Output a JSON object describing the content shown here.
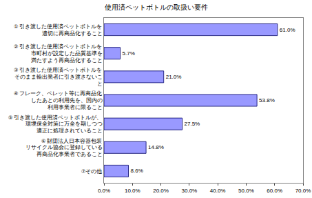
{
  "chart_data": {
    "type": "bar",
    "orientation": "horizontal",
    "title": "使用済ペットボトルの取扱い要件",
    "categories": [
      "① 引き渡した使用済ペットボトルを\n適切に再商品化すること",
      "② 引き渡した使用済ペットボトルを\n市町村が設定した品質基準を\n満たすよう再商品化すること",
      "③ 引き渡した使用済ペットボトルを\nそのまま輸出業者に引き渡さないこ\nと",
      "④ フレーク、ペレット等に再商品化\nしたあとの利用先を、国内の\n利用事業者に限ること",
      "⑤ 引き渡した使用済ペットボトルが、\n環境保全対策に万全を期しつつ\n適正に処理されていること",
      "⑥ 財団法人日本容器包装\nリサイクル協会に登録している\n再商品化事業者であること",
      "⑦その他"
    ],
    "values": [
      61.0,
      5.7,
      21.0,
      53.8,
      27.5,
      14.8,
      8.6
    ],
    "value_labels": [
      "61.0%",
      "5.7%",
      "21.0%",
      "53.8%",
      "27.5%",
      "14.8%",
      "8.6%"
    ],
    "data_labels": true,
    "color": "#9999ff",
    "xlim": [
      0,
      70
    ],
    "xticks": [
      {
        "value": 0,
        "label": "0.0%"
      },
      {
        "value": 10,
        "label": "10.0%"
      },
      {
        "value": 20,
        "label": "20.0%"
      },
      {
        "value": 30,
        "label": "30.0%"
      },
      {
        "value": 40,
        "label": "40.0%"
      },
      {
        "value": 50,
        "label": "50.0%"
      },
      {
        "value": 60,
        "label": "60.0%"
      },
      {
        "value": 70,
        "label": "70.0%"
      }
    ],
    "grid": false
  }
}
